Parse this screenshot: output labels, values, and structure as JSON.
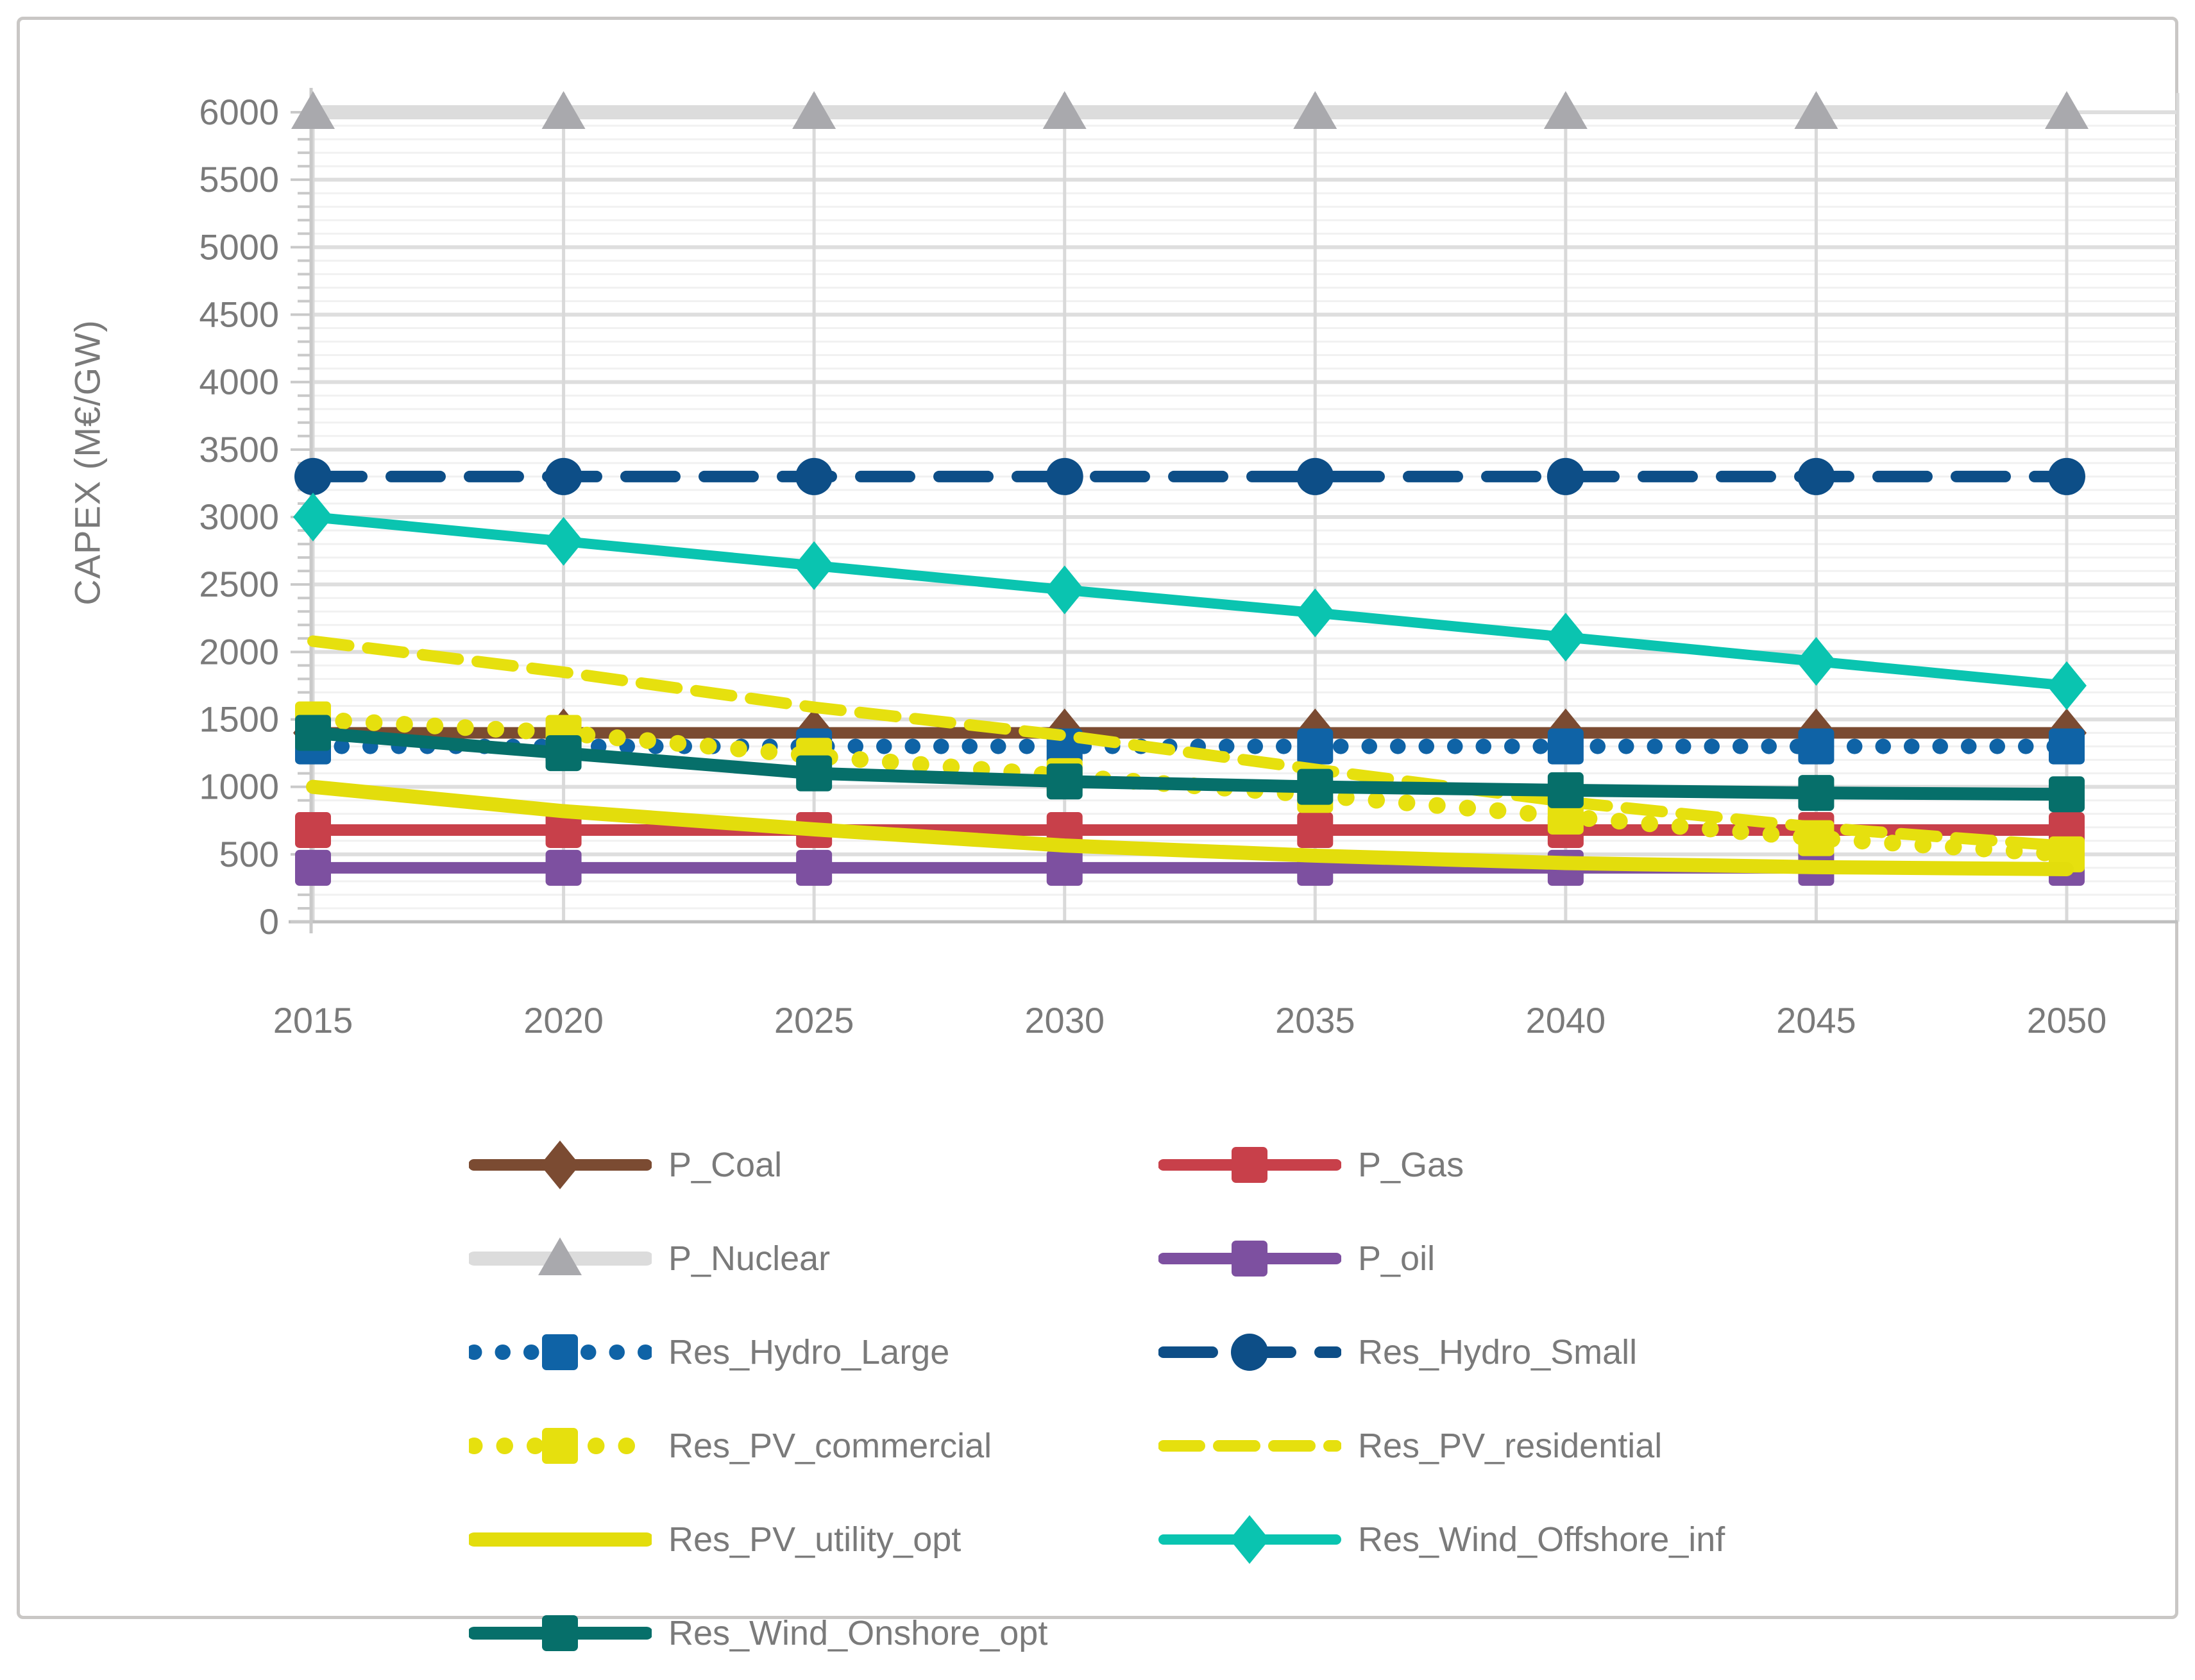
{
  "figure": {
    "background": "#ffffff",
    "border_color": "#c9c7c5"
  },
  "colors": {
    "text": "#7a7a7a",
    "grid_minor": "#f1f1f1",
    "grid_major": "#dedede",
    "year_gridline": "#d9d9d9",
    "axis": "#c9c9c9",
    "baseline": "#bfbfbf"
  },
  "chart_data": {
    "type": "line",
    "title": "",
    "y_title": "CAPEX (M€/GW)",
    "xlabel": "",
    "ylabel": "CAPEX (M€/GW)",
    "x": [
      2015,
      2020,
      2025,
      2030,
      2035,
      2040,
      2045,
      2050
    ],
    "x_tick_labels": [
      "2015",
      "2020",
      "2025",
      "2030",
      "2035",
      "2040",
      "2045",
      "2050"
    ],
    "y_axis": {
      "min": 0,
      "max": 6000,
      "major_step": 500,
      "minor_step": 100,
      "tick_labels": [
        "0",
        "500",
        "1000",
        "1500",
        "2000",
        "2500",
        "3000",
        "3500",
        "4000",
        "4500",
        "5000",
        "5500",
        "6000"
      ]
    },
    "grid": "major and minor horizontal, vertical at each year",
    "legend_position": "bottom, two columns",
    "series": [
      {
        "name": "P_Coal",
        "color": "#7b4b32",
        "dash": "solid",
        "width": 18,
        "marker": "diamond",
        "values": [
          1400,
          1400,
          1400,
          1400,
          1400,
          1400,
          1400,
          1400
        ]
      },
      {
        "name": "P_Gas",
        "color": "#c8404a",
        "dash": "solid",
        "width": 18,
        "marker": "square",
        "values": [
          680,
          680,
          680,
          680,
          680,
          680,
          680,
          680
        ]
      },
      {
        "name": "P_Nuclear",
        "color": "#dcdcdc",
        "dash": "solid",
        "width": 22,
        "marker": "triangle",
        "marker_color": "#a9a9ad",
        "values": [
          6000,
          6000,
          6000,
          6000,
          6000,
          6000,
          6000,
          6000
        ]
      },
      {
        "name": "P_oil",
        "color": "#7d50a0",
        "dash": "solid",
        "width": 18,
        "marker": "square",
        "values": [
          400,
          400,
          400,
          400,
          400,
          400,
          400,
          400
        ]
      },
      {
        "name": "Res_Hydro_Large",
        "color": "#0f63a6",
        "dash": "dot",
        "width": 24,
        "marker": "square",
        "values": [
          1300,
          1300,
          1300,
          1300,
          1300,
          1300,
          1300,
          1300
        ]
      },
      {
        "name": "Res_Hydro_Small",
        "color": "#0d4e87",
        "dash": "long-dash",
        "width": 18,
        "marker": "circle",
        "values": [
          3300,
          3300,
          3300,
          3300,
          3300,
          3300,
          3300,
          3300
        ]
      },
      {
        "name": "Res_PV_commercial",
        "color": "#e6e00e",
        "dash": "dot",
        "width": 26,
        "marker": "square",
        "values": [
          1500,
          1400,
          1230,
          1080,
          940,
          780,
          620,
          500
        ]
      },
      {
        "name": "Res_PV_residential",
        "color": "#e6e00e",
        "dash": "dash",
        "width": 18,
        "marker": "none",
        "values": [
          2080,
          1850,
          1590,
          1380,
          1130,
          890,
          700,
          560
        ]
      },
      {
        "name": "Res_PV_utility_opt",
        "color": "#e3dd0c",
        "dash": "solid",
        "width": 22,
        "marker": "none",
        "values": [
          1000,
          820,
          685,
          565,
          490,
          435,
          405,
          390
        ]
      },
      {
        "name": "Res_Wind_Offshore_inf",
        "color": "#0ac4b0",
        "dash": "solid",
        "width": 16,
        "marker": "diamond",
        "values": [
          3000,
          2820,
          2640,
          2460,
          2290,
          2110,
          1930,
          1750
        ]
      },
      {
        "name": "Res_Wind_Onshore_opt",
        "color": "#066f6a",
        "dash": "solid",
        "width": 20,
        "marker": "square",
        "values": [
          1400,
          1250,
          1100,
          1040,
          1000,
          975,
          955,
          945
        ]
      }
    ]
  }
}
